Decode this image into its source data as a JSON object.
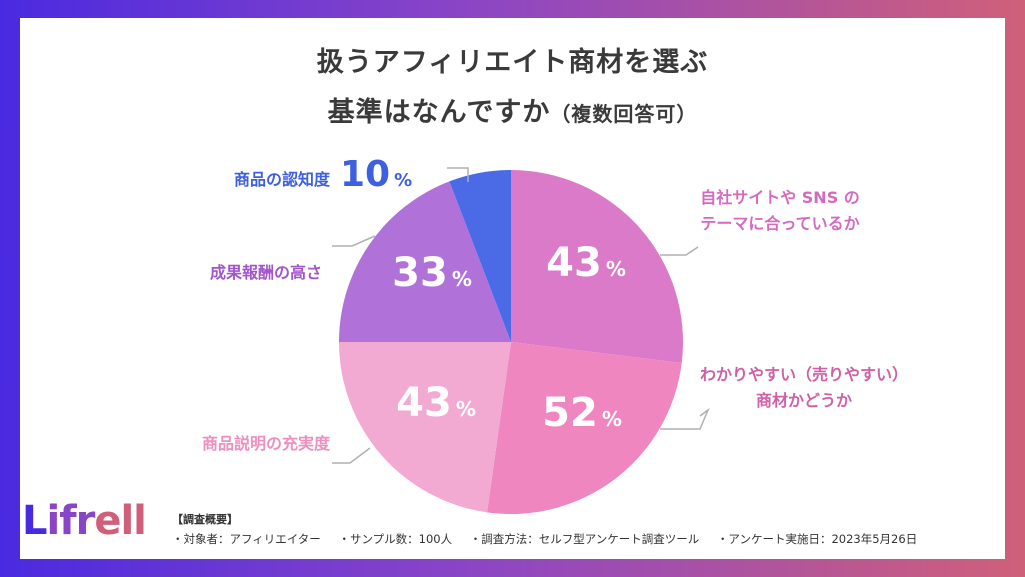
{
  "title_line1": "扱うアフィリエイト商材を選ぶ",
  "title_line2": "基準はなんですか",
  "title_note": "（複数回答可）",
  "chart_data": {
    "type": "pie",
    "title": "扱うアフィリエイト商材を選ぶ基準はなんですか（複数回答可）",
    "slices": [
      {
        "label_lines": [
          "自社サイトや SNS の",
          "テーマに合っているか"
        ],
        "value": 43,
        "color": "#db7ac8",
        "label_color": "#d46ac0"
      },
      {
        "label_lines": [
          "わかりやすい（売りやすい）",
          "商材かどうか"
        ],
        "value": 52,
        "color": "#ef86bf",
        "label_color": "#d05fa8"
      },
      {
        "label_lines": [
          "商品説明の充実度"
        ],
        "value": 43,
        "color": "#f2aad3",
        "label_color": "#ee8fbf"
      },
      {
        "label_lines": [
          "成果報酬の高さ"
        ],
        "value": 33,
        "color": "#b072d8",
        "label_color": "#a256cc"
      },
      {
        "label_lines": [
          "商品の認知度"
        ],
        "value": 10,
        "color": "#4a6ae6",
        "label_color": "#3d5fe0"
      }
    ],
    "unit": "%"
  },
  "logo": {
    "part1": "L",
    "part2": "ifr",
    "part3": "ell"
  },
  "footer": {
    "heading": "【調査概要】",
    "items": [
      "・対象者：アフィリエイター",
      "・サンプル数：100人",
      "・調査方法：セルフ型アンケート調査ツール",
      "・アンケート実施日：2023年5月26日"
    ]
  },
  "colors": {
    "bg_start": "#4a2ae0",
    "bg_end": "#d0607a",
    "leader": "#b0b0b0"
  }
}
